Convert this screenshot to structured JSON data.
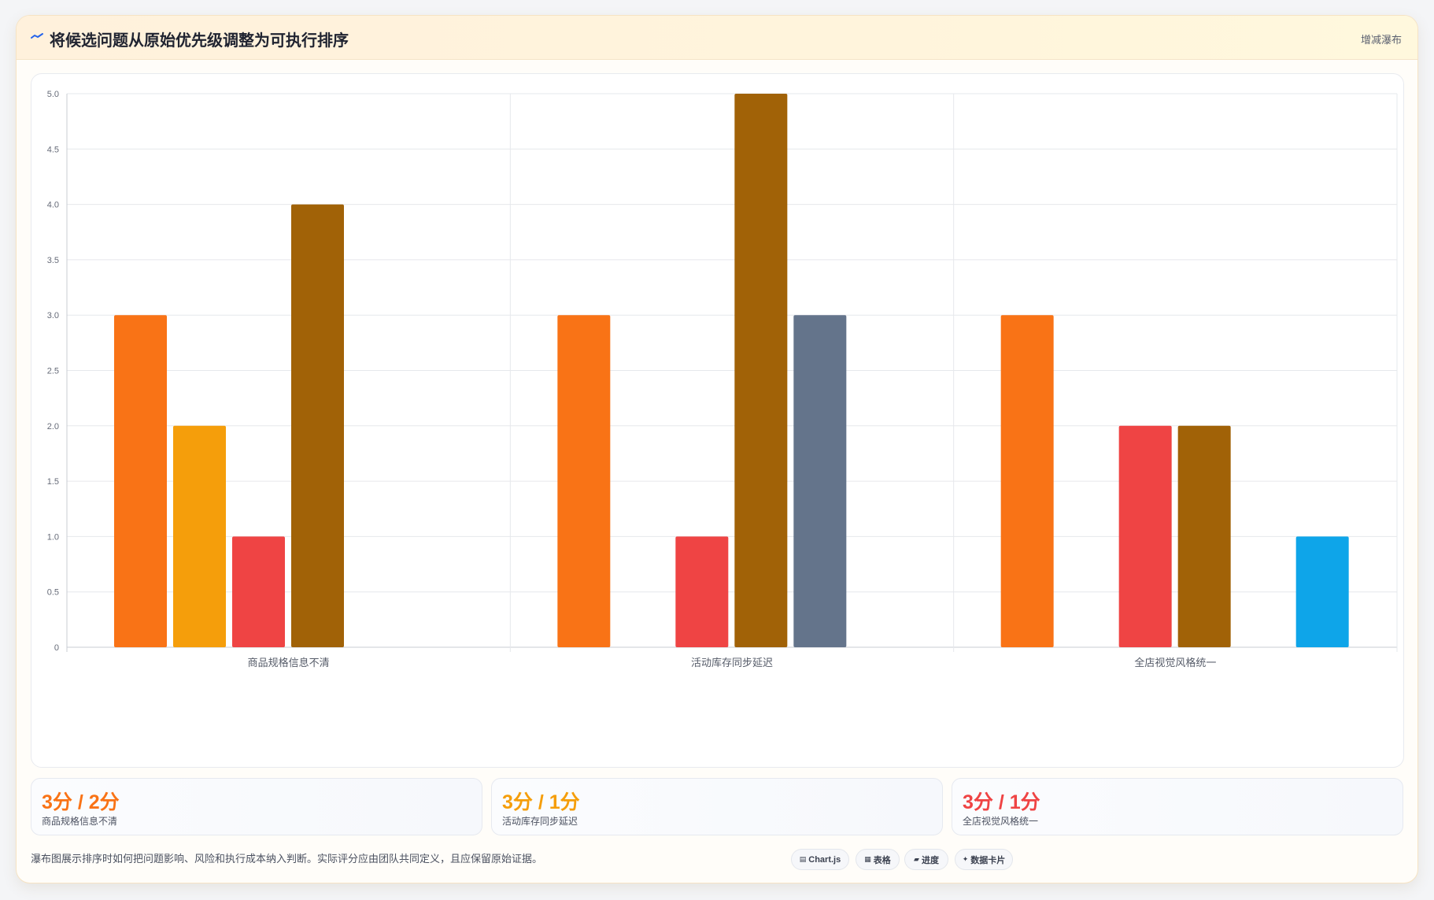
{
  "header": {
    "title": "将候选问题从原始优先级调整为可执行排序",
    "badge": "增减瀑布",
    "icon": "chart-line-icon"
  },
  "chart_data": {
    "type": "bar",
    "categories": [
      "商品规格信息不清",
      "活动库存同步延迟",
      "全店视觉风格统一"
    ],
    "series": [
      {
        "color": "#f97316",
        "values": [
          3,
          3,
          3
        ]
      },
      {
        "color": "#f59e0b",
        "values": [
          2,
          0,
          0
        ]
      },
      {
        "color": "#ef4444",
        "values": [
          1,
          1,
          2
        ]
      },
      {
        "color": "#a16207",
        "values": [
          4,
          5,
          2
        ]
      },
      {
        "color": "#64748b",
        "values": [
          0,
          3,
          0
        ]
      },
      {
        "color": "#0ea5e9",
        "values": [
          0,
          0,
          1
        ]
      }
    ],
    "ylim": [
      0,
      5
    ],
    "yticks": [
      "0",
      "0.5",
      "1.0",
      "1.5",
      "2.0",
      "2.5",
      "3.0",
      "3.5",
      "4.0",
      "4.5",
      "5.0"
    ],
    "grid": true,
    "legend": "none"
  },
  "stats": [
    {
      "value": "3分 / 2分",
      "label": "商品规格信息不清",
      "color": "#f97316"
    },
    {
      "value": "3分 / 1分",
      "label": "活动库存同步延迟",
      "color": "#f59e0b"
    },
    {
      "value": "3分 / 1分",
      "label": "全店视觉风格统一",
      "color": "#ef4444"
    }
  ],
  "footer": {
    "note": "瀑布图展示排序时如何把问题影响、风险和执行成本纳入判断。实际评分应由团队共同定义，且应保留原始证据。",
    "chips": [
      {
        "icon": "chart-icon",
        "glyph": "▤",
        "label": "Chart.js"
      },
      {
        "icon": "table-icon",
        "glyph": "▦",
        "label": "表格"
      },
      {
        "icon": "progress-icon",
        "glyph": "▰",
        "label": "进度"
      },
      {
        "icon": "data-card-icon",
        "glyph": "✦",
        "label": "数据卡片"
      }
    ]
  }
}
